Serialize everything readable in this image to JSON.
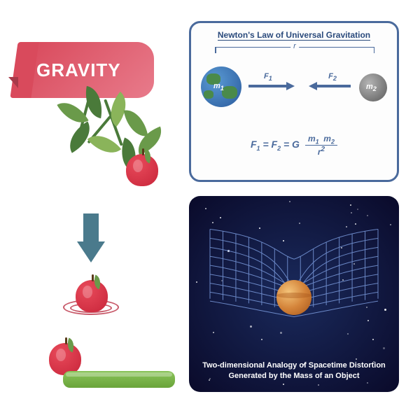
{
  "title": {
    "text": "GRAVITY",
    "bg_gradient": [
      "#d94a5c",
      "#e87b8b"
    ],
    "text_color": "#ffffff",
    "fontsize": 26
  },
  "apple": {
    "colors": [
      "#e84a5a",
      "#c8253a"
    ],
    "stem_color": "#5a3a1a",
    "leaf_color": "#6a9a4a"
  },
  "leaves": {
    "colors": [
      "#6a9a4a",
      "#4a7a3a",
      "#8ab45a"
    ]
  },
  "arrow_down": {
    "color": "#4a7a8c"
  },
  "impact_rings": {
    "color": "#c85a6a",
    "count": 2
  },
  "table": {
    "gradient": [
      "#8ac45a",
      "#6aa43a"
    ]
  },
  "newton": {
    "title": "Newton's Law of Universal Gravitation",
    "border_color": "#4a6a9c",
    "r_label": "r",
    "earth": {
      "colors": [
        "#5a9ad4",
        "#2a5a9c"
      ],
      "land_color": "#4a8a4a",
      "label": "m1"
    },
    "moon": {
      "colors": [
        "#b4b4b4",
        "#5a5a5a"
      ],
      "label": "m2"
    },
    "forces": {
      "f1": "F1",
      "f2": "F2",
      "color": "#4a6a9c"
    },
    "formula": {
      "lhs": "F1 = F2 = G",
      "num": "m1  m2",
      "den": "r²"
    }
  },
  "spacetime": {
    "bg_gradient": [
      "#1a2a5c",
      "#0a0a2a"
    ],
    "grid_color": "#7a9adc",
    "planet_colors": [
      "#f4c47a",
      "#d4843a",
      "#a4541a"
    ],
    "caption_line1": "Two-dimensional Analogy of Spacetime Distortion",
    "caption_line2": "Generated by the Mass of an Object",
    "star_count": 40
  }
}
